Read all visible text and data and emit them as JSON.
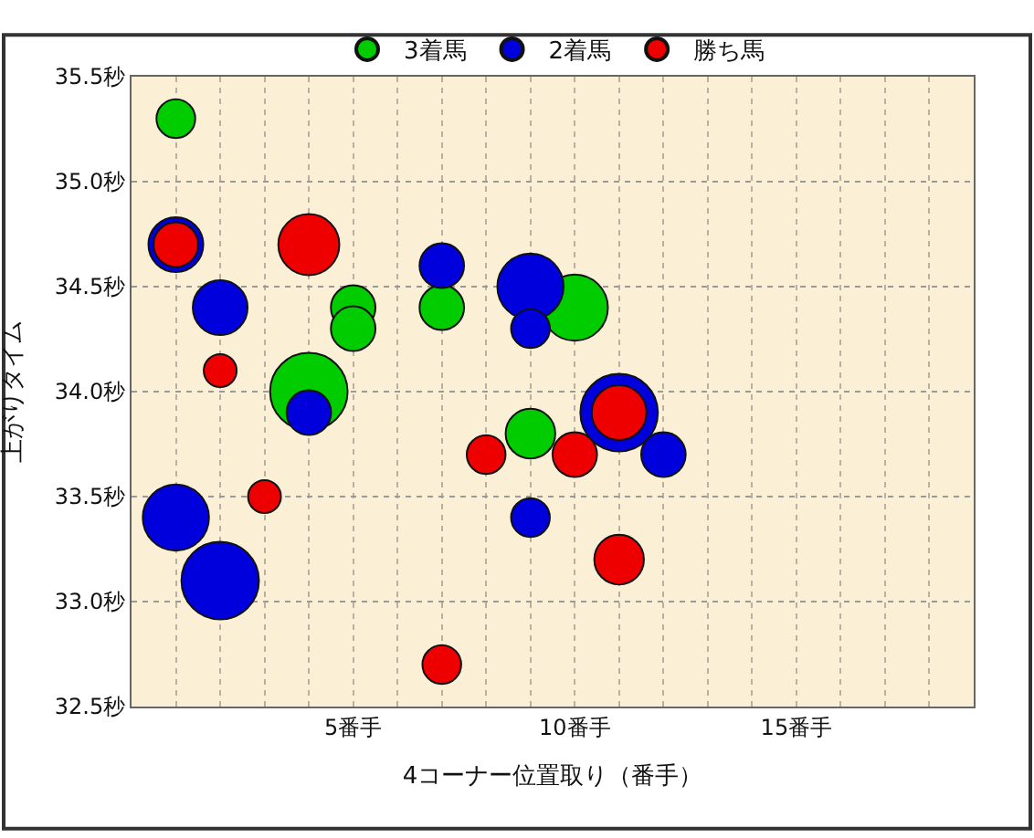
{
  "chart_data": {
    "type": "bubble",
    "xlabel": "4コーナー位置取り（番手）",
    "ylabel": "上がりタイム",
    "xlim": [
      0,
      19
    ],
    "ylim": [
      32.5,
      35.5
    ],
    "xticks": [
      {
        "value": 1,
        "label": null
      },
      {
        "value": 2,
        "label": null
      },
      {
        "value": 3,
        "label": null
      },
      {
        "value": 4,
        "label": null
      },
      {
        "value": 5,
        "label": "5番手"
      },
      {
        "value": 6,
        "label": null
      },
      {
        "value": 7,
        "label": null
      },
      {
        "value": 8,
        "label": null
      },
      {
        "value": 9,
        "label": null
      },
      {
        "value": 10,
        "label": "10番手"
      },
      {
        "value": 11,
        "label": null
      },
      {
        "value": 12,
        "label": null
      },
      {
        "value": 13,
        "label": null
      },
      {
        "value": 14,
        "label": null
      },
      {
        "value": 15,
        "label": "15番手"
      },
      {
        "value": 16,
        "label": null
      },
      {
        "value": 17,
        "label": null
      },
      {
        "value": 18,
        "label": null
      }
    ],
    "yticks": [
      {
        "value": 32.5,
        "label": "32.5秒"
      },
      {
        "value": 33.0,
        "label": "33.0秒"
      },
      {
        "value": 33.5,
        "label": "33.5秒"
      },
      {
        "value": 34.0,
        "label": "34.0秒"
      },
      {
        "value": 34.5,
        "label": "34.5秒"
      },
      {
        "value": 35.0,
        "label": "35.0秒"
      },
      {
        "value": 35.5,
        "label": "35.5秒"
      }
    ],
    "grid": true,
    "legend": "top",
    "series": [
      {
        "name": "3着馬",
        "color": "#00cc00",
        "x": [
          1,
          5,
          5,
          7,
          10,
          4,
          9
        ],
        "values": [
          35.3,
          34.4,
          34.3,
          34.4,
          34.4,
          34.0,
          33.8
        ],
        "sizes": [
          0.25,
          0.33,
          0.33,
          0.33,
          0.73,
          1,
          0.41
        ]
      },
      {
        "name": "2着馬",
        "color": "#0000dd",
        "x": [
          1,
          2,
          4,
          7,
          9,
          9,
          11,
          12,
          1,
          2,
          9
        ],
        "values": [
          34.7,
          34.4,
          33.9,
          34.6,
          34.5,
          34.3,
          33.9,
          33.7,
          33.4,
          33.1,
          33.4
        ],
        "sizes": [
          0.5,
          0.5,
          0.33,
          0.33,
          0.73,
          0.25,
          1,
          0.33,
          0.73,
          1,
          0.25
        ]
      },
      {
        "name": "勝ち馬",
        "color": "#ee0000",
        "x": [
          1,
          4,
          2,
          3,
          8,
          10,
          11,
          11,
          7
        ],
        "values": [
          34.7,
          34.7,
          34.1,
          33.5,
          33.7,
          33.7,
          33.9,
          33.2,
          32.7
        ],
        "sizes": [
          0.33,
          0.62,
          0.18,
          0.18,
          0.25,
          0.33,
          0.5,
          0.41,
          0.25
        ]
      }
    ]
  }
}
